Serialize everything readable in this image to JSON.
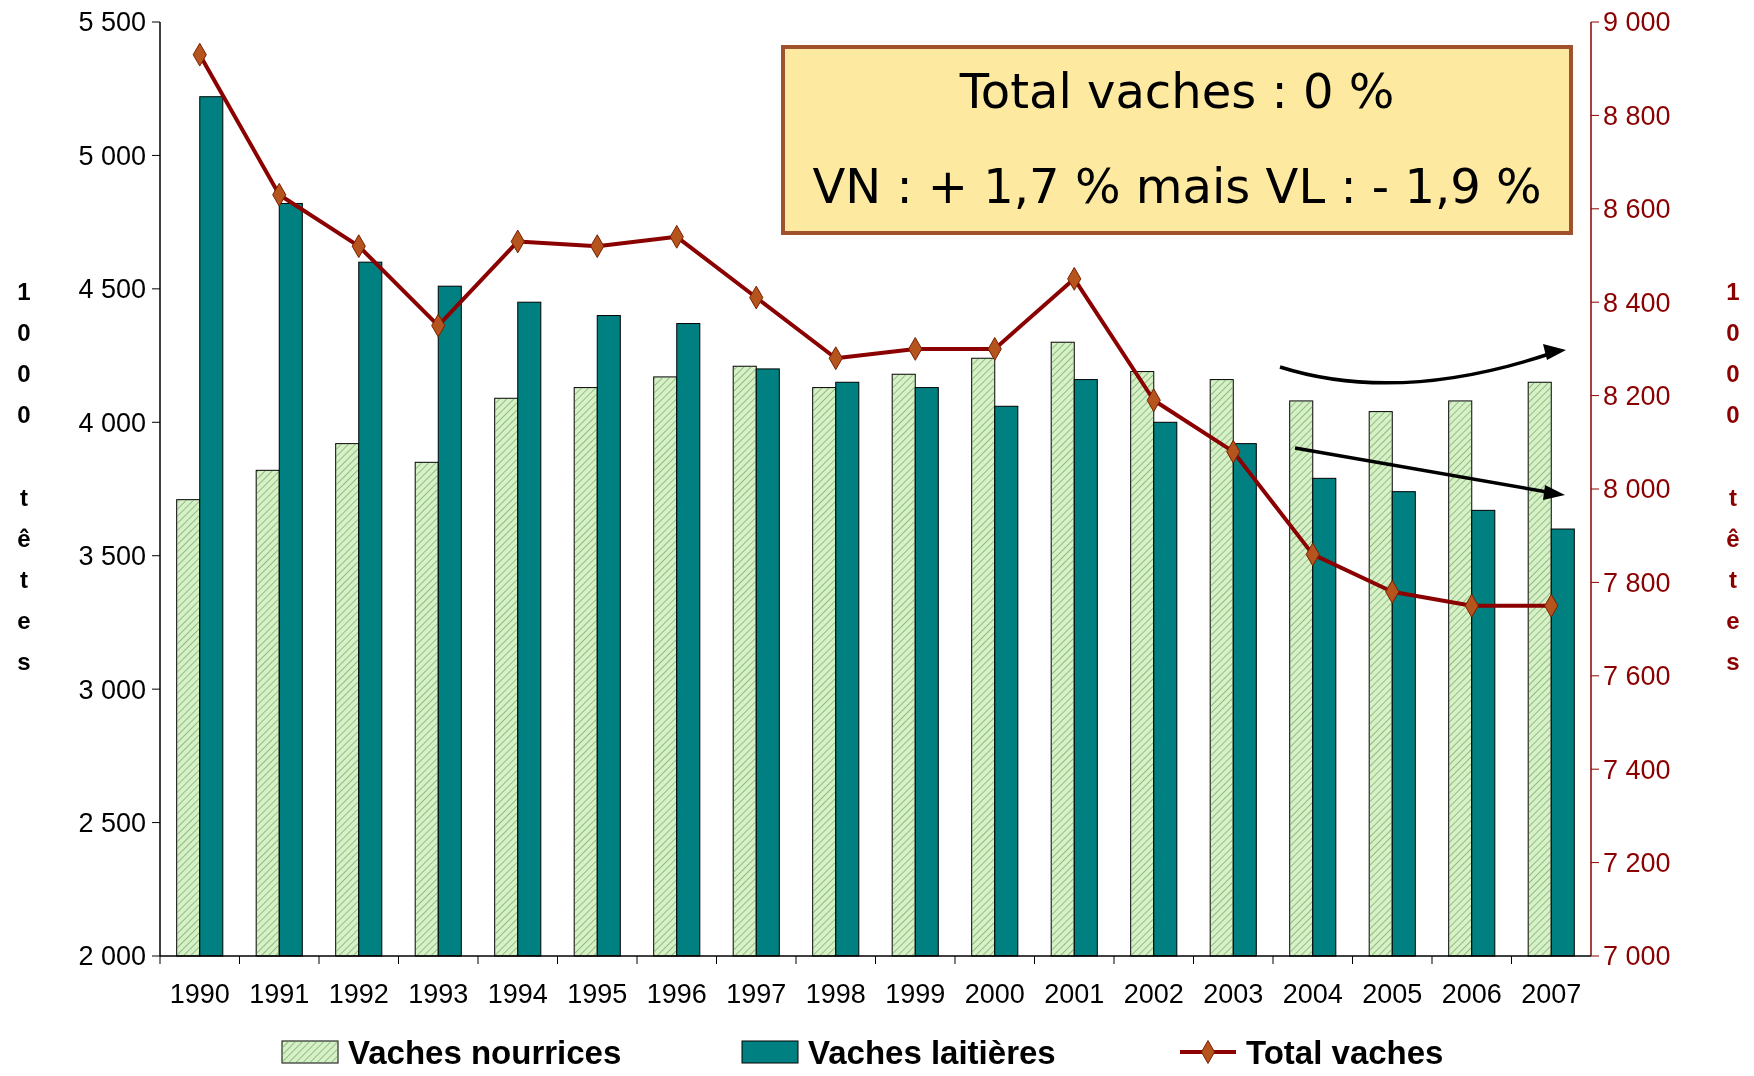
{
  "chart_data": {
    "type": "bar",
    "ylabel": "1000 têtes",
    "y2label": "1000 têtes",
    "categories": [
      "1990",
      "1991",
      "1992",
      "1993",
      "1994",
      "1995",
      "1996",
      "1997",
      "1998",
      "1999",
      "2000",
      "2001",
      "2002",
      "2003",
      "2004",
      "2005",
      "2006",
      "2007"
    ],
    "series": [
      {
        "name": "Vaches nourrices",
        "color": "#d8f0c8",
        "values": [
          3710,
          3820,
          3920,
          3850,
          4090,
          4130,
          4170,
          4210,
          4130,
          4180,
          4240,
          4300,
          4190,
          4160,
          4080,
          4040,
          4080,
          4150
        ]
      },
      {
        "name": "Vaches laitières",
        "color": "#008080",
        "values": [
          5220,
          4820,
          4600,
          4510,
          4450,
          4400,
          4370,
          4200,
          4150,
          4130,
          4060,
          4160,
          4000,
          3920,
          3790,
          3740,
          3670,
          3600
        ]
      },
      {
        "name": "Total vaches",
        "type": "line",
        "axis": "y2",
        "color": "#8b0000",
        "marker": "diamond",
        "values": [
          8930,
          8630,
          8520,
          8350,
          8530,
          8520,
          8540,
          8410,
          8280,
          8300,
          8300,
          8450,
          8190,
          8080,
          7860,
          7780,
          7750,
          7750
        ]
      }
    ],
    "ylim": [
      2000,
      5500
    ],
    "yticks": [
      {
        "value": 2000,
        "label": "2 000"
      },
      {
        "value": 2500,
        "label": "2 500"
      },
      {
        "value": 3000,
        "label": "3 000"
      },
      {
        "value": 3500,
        "label": "3 500"
      },
      {
        "value": 4000,
        "label": "4 000"
      },
      {
        "value": 4500,
        "label": "4 500"
      },
      {
        "value": 5000,
        "label": "5 000"
      },
      {
        "value": 5500,
        "label": "5 500"
      }
    ],
    "y2lim": [
      7000,
      9000
    ],
    "y2ticks": [
      {
        "value": 7000,
        "label": "7 000"
      },
      {
        "value": 7200,
        "label": "7 200"
      },
      {
        "value": 7400,
        "label": "7 400"
      },
      {
        "value": 7600,
        "label": "7 600"
      },
      {
        "value": 7800,
        "label": "7 800"
      },
      {
        "value": 8000,
        "label": "8 000"
      },
      {
        "value": 8200,
        "label": "8 200"
      },
      {
        "value": 8400,
        "label": "8 400"
      },
      {
        "value": 8600,
        "label": "8 600"
      },
      {
        "value": 8800,
        "label": "8 800"
      },
      {
        "value": 9000,
        "label": "9 000"
      }
    ],
    "annotations": [
      "Total vaches : 0 %",
      "VN : + 1,7 % mais VL : - 1,9 %"
    ],
    "legend": "bottom",
    "grid": false
  }
}
